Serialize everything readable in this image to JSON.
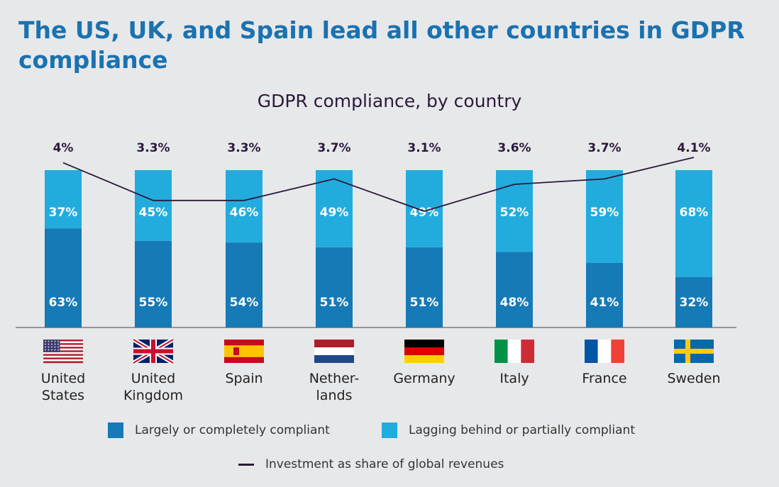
{
  "headline": "The US, UK, and Spain lead all other countries in GDPR compliance",
  "colors": {
    "compliant": "#157ab6",
    "lagging": "#22acdd",
    "investment_line": "#2b1a3b",
    "headline": "#1a72b0"
  },
  "legend": {
    "compliant_label": "Largely or completely compliant",
    "lagging_label": "Lagging behind or partially compliant",
    "investment_label": "Investment as share of global revenues"
  },
  "chart_data": {
    "type": "bar",
    "title": "GDPR compliance, by country",
    "stacked": true,
    "categories": [
      "United States",
      "United Kingdom",
      "Spain",
      "Netherlands",
      "Germany",
      "Italy",
      "France",
      "Sweden"
    ],
    "category_labels": [
      [
        "United",
        "States"
      ],
      [
        "United",
        "Kingdom"
      ],
      [
        "Spain"
      ],
      [
        "Nether-",
        "lands"
      ],
      [
        "Germany"
      ],
      [
        "Italy"
      ],
      [
        "France"
      ],
      [
        "Sweden"
      ]
    ],
    "flags": [
      "us-flag",
      "uk-flag",
      "spain-flag",
      "netherlands-flag",
      "germany-flag",
      "italy-flag",
      "france-flag",
      "sweden-flag"
    ],
    "series": [
      {
        "name": "Largely or completely compliant",
        "values": [
          63,
          55,
          54,
          51,
          51,
          48,
          41,
          32
        ],
        "labels": [
          "63%",
          "55%",
          "54%",
          "51%",
          "51%",
          "48%",
          "41%",
          "32%"
        ]
      },
      {
        "name": "Lagging behind or partially compliant",
        "values": [
          37,
          45,
          46,
          49,
          49,
          52,
          59,
          68
        ],
        "labels": [
          "37%",
          "45%",
          "46%",
          "49%",
          "49%",
          "52%",
          "59%",
          "68%"
        ]
      }
    ],
    "line_series": {
      "name": "Investment as share of global revenues",
      "values": [
        4.0,
        3.3,
        3.3,
        3.7,
        3.1,
        3.6,
        3.7,
        4.1
      ],
      "labels": [
        "4%",
        "3.3%",
        "3.3%",
        "3.7%",
        "3.1%",
        "3.6%",
        "3.7%",
        "4.1%"
      ]
    },
    "ylim": [
      0,
      100
    ],
    "legend_position": "bottom",
    "grid": false
  }
}
